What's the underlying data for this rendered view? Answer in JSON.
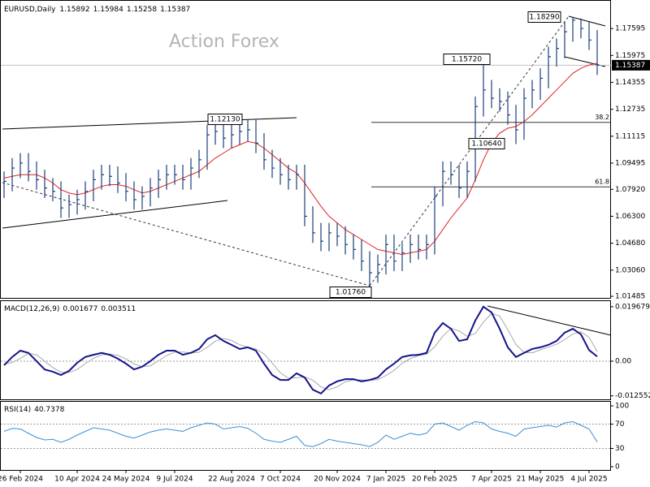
{
  "chart_data": [
    {
      "type": "ohlc",
      "symbol": "EURUSD,Daily",
      "last_bar": {
        "open": 1.15892,
        "high": 1.15984,
        "low": 1.15258,
        "close": 1.15387
      },
      "watermark": "Action Forex",
      "color": "#1c3f7a",
      "categories": [
        null,
        null,
        "26 Feb 2024",
        null,
        null,
        null,
        null,
        null,
        null,
        "10 Apr 2024",
        null,
        null,
        null,
        null,
        null,
        "24 May 2024",
        null,
        null,
        null,
        null,
        null,
        "9 Jul 2024",
        null,
        null,
        null,
        null,
        null,
        null,
        "22 Aug 2024",
        null,
        null,
        null,
        null,
        null,
        "7 Oct 2024",
        null,
        null,
        null,
        null,
        null,
        null,
        "20 Nov 2024",
        null,
        null,
        null,
        null,
        null,
        "7 Jan 2025",
        null,
        null,
        null,
        null,
        null,
        "20 Feb 2025",
        null,
        null,
        null,
        null,
        null,
        null,
        "7 Apr 2025",
        null,
        null,
        null,
        null,
        null,
        "21 May 2025",
        null,
        null,
        null,
        null,
        null,
        "4 Jul 2025",
        null
      ],
      "high": [
        1.09,
        1.098,
        1.101,
        1.101,
        1.096,
        1.091,
        1.086,
        1.084,
        1.076,
        1.079,
        1.084,
        1.091,
        1.094,
        1.094,
        1.093,
        1.089,
        1.084,
        1.081,
        1.086,
        1.091,
        1.094,
        1.094,
        1.094,
        1.098,
        1.103,
        1.118,
        1.12,
        1.12,
        1.1213,
        1.12,
        1.121,
        1.121,
        1.113,
        1.103,
        1.098,
        1.094,
        1.094,
        1.094,
        1.069,
        1.059,
        1.059,
        1.059,
        1.057,
        1.052,
        1.049,
        1.042,
        1.04,
        1.052,
        1.052,
        1.047,
        1.052,
        1.052,
        1.052,
        1.081,
        1.096,
        1.096,
        1.094,
        1.096,
        1.135,
        1.1572,
        1.145,
        1.14,
        1.138,
        1.13,
        1.14,
        1.145,
        1.152,
        1.165,
        1.17,
        1.18,
        1.1829,
        1.182,
        1.18,
        1.175
      ],
      "low": [
        1.074,
        1.078,
        1.086,
        1.084,
        1.079,
        1.074,
        1.072,
        1.062,
        1.062,
        1.064,
        1.067,
        1.072,
        1.079,
        1.081,
        1.077,
        1.072,
        1.067,
        1.067,
        1.069,
        1.074,
        1.079,
        1.082,
        1.079,
        1.079,
        1.086,
        1.091,
        1.106,
        1.104,
        1.104,
        1.106,
        1.108,
        1.101,
        1.091,
        1.086,
        1.082,
        1.079,
        1.079,
        1.057,
        1.047,
        1.042,
        1.042,
        1.045,
        1.04,
        1.037,
        1.03,
        1.0176,
        1.023,
        1.028,
        1.03,
        1.03,
        1.035,
        1.037,
        1.037,
        1.04,
        1.069,
        1.082,
        1.074,
        1.074,
        1.084,
        1.123,
        1.128,
        1.126,
        1.118,
        1.1064,
        1.109,
        1.128,
        1.133,
        1.14,
        1.153,
        1.158,
        1.168,
        1.17,
        1.163,
        1.148
      ],
      "close": [
        1.084,
        1.092,
        1.095,
        1.09,
        1.085,
        1.08,
        1.078,
        1.068,
        1.07,
        1.073,
        1.078,
        1.085,
        1.088,
        1.087,
        1.083,
        1.078,
        1.073,
        1.075,
        1.08,
        1.085,
        1.088,
        1.088,
        1.085,
        1.092,
        1.097,
        1.112,
        1.114,
        1.11,
        1.112,
        1.114,
        1.115,
        1.107,
        1.097,
        1.092,
        1.088,
        1.085,
        1.088,
        1.063,
        1.053,
        1.048,
        1.053,
        1.051,
        1.046,
        1.043,
        1.036,
        1.029,
        1.034,
        1.046,
        1.036,
        1.041,
        1.046,
        1.043,
        1.046,
        1.075,
        1.09,
        1.088,
        1.08,
        1.09,
        1.129,
        1.139,
        1.134,
        1.132,
        1.124,
        1.115,
        1.134,
        1.139,
        1.146,
        1.159,
        1.164,
        1.174,
        1.181,
        1.176,
        1.169,
        1.15387
      ],
      "ma": {
        "color": "#e02020",
        "values": [
          1.086,
          1.087,
          1.088,
          1.088,
          1.088,
          1.086,
          1.083,
          1.079,
          1.077,
          1.076,
          1.077,
          1.079,
          1.081,
          1.082,
          1.082,
          1.081,
          1.079,
          1.077,
          1.078,
          1.08,
          1.082,
          1.084,
          1.086,
          1.088,
          1.09,
          1.094,
          1.098,
          1.101,
          1.104,
          1.106,
          1.108,
          1.107,
          1.104,
          1.1,
          1.096,
          1.092,
          1.089,
          1.083,
          1.076,
          1.069,
          1.063,
          1.059,
          1.055,
          1.052,
          1.049,
          1.046,
          1.043,
          1.042,
          1.041,
          1.04,
          1.041,
          1.042,
          1.043,
          1.048,
          1.055,
          1.062,
          1.068,
          1.074,
          1.085,
          1.097,
          1.107,
          1.113,
          1.116,
          1.117,
          1.12,
          1.124,
          1.129,
          1.134,
          1.139,
          1.144,
          1.149,
          1.152,
          1.154,
          1.155
        ]
      },
      "levels": [
        {
          "label": "38.2",
          "value": 1.1195
        },
        {
          "label": "61.8",
          "value": 1.0807
        }
      ],
      "price_labels": [
        "1.18290",
        "1.15720",
        "1.12130",
        "1.10640",
        "1.01760"
      ],
      "ylim": [
        1.0139,
        1.1931
      ],
      "yticks": [
        1.17595,
        1.15975,
        1.14355,
        1.12735,
        1.11115,
        1.09495,
        {
          "value": 1.0792,
          "label": "1.07920"
        },
        {
          "value": 1.063,
          "label": "1.06300"
        },
        {
          "value": 1.0468,
          "label": "1.04680"
        },
        {
          "value": 1.0306,
          "label": "1.03060"
        },
        1.01485
      ]
    },
    {
      "type": "line",
      "label": "MACD(12,26,9)",
      "series": [
        {
          "color": "#14148c",
          "values": [
            -0.0015,
            0.0015,
            0.0038,
            0.003,
            0,
            -0.003,
            -0.0038,
            -0.005,
            -0.0035,
            -0.0006,
            0.0015,
            0.0023,
            0.003,
            0.0023,
            0.0009,
            -0.0009,
            -0.003,
            -0.002,
            0,
            0.0023,
            0.0038,
            0.0038,
            0.0023,
            0.003,
            0.0044,
            0.0079,
            0.0094,
            0.0073,
            0.0059,
            0.0044,
            0.005,
            0.0038,
            -0.0009,
            -0.005,
            -0.0068,
            -0.0068,
            -0.0044,
            -0.0059,
            -0.0103,
            -0.0117,
            -0.0088,
            -0.0073,
            -0.0065,
            -0.0065,
            -0.0073,
            -0.0068,
            -0.0059,
            -0.003,
            -0.0009,
            0.0015,
            0.0021,
            0.0023,
            0.003,
            0.0103,
            0.0138,
            0.0117,
            0.0073,
            0.0079,
            0.0147,
            0.0197,
            0.0176,
            0.0117,
            0.005,
            0.0015,
            0.003,
            0.0044,
            0.005,
            0.0059,
            0.0073,
            0.0103,
            0.0117,
            0.0097,
            0.004,
            0.001677
          ]
        },
        {
          "color": "#a8a8a8",
          "values": [
            -0.001,
            -0.0005,
            0.001,
            0.0028,
            0.0023,
            0,
            -0.0023,
            -0.004,
            -0.0041,
            -0.003,
            -0.0009,
            0.001,
            0.0023,
            0.0025,
            0.0021,
            0.0008,
            -0.001,
            -0.002,
            -0.0017,
            0.0001,
            0.002,
            0.0033,
            0.0033,
            0.003,
            0.0032,
            0.005,
            0.0072,
            0.0082,
            0.0075,
            0.0059,
            0.0051,
            0.0044,
            0.0026,
            -0.0007,
            -0.0042,
            -0.0062,
            -0.006,
            -0.0057,
            -0.0069,
            -0.0093,
            -0.0103,
            -0.0093,
            -0.0075,
            -0.0068,
            -0.0068,
            -0.0069,
            -0.0067,
            -0.0052,
            -0.0033,
            -0.0008,
            0.0009,
            0.002,
            0.0025,
            0.0052,
            0.009,
            0.0119,
            0.0109,
            0.009,
            0.01,
            0.0141,
            0.0173,
            0.0163,
            0.0114,
            0.006,
            0.0032,
            0.003,
            0.0041,
            0.0051,
            0.0061,
            0.0078,
            0.0098,
            0.0106,
            0.0086,
            0.003511
          ]
        }
      ],
      "ylim": [
        -0.0141,
        0.0217
      ],
      "yticks": [
        0.019679,
        {
          "value": 0,
          "label": "0.00"
        },
        -0.012552
      ],
      "grid_levels": [
        0
      ]
    },
    {
      "type": "line",
      "label": "RSI(14)",
      "series": [
        {
          "color": "#3d8fd6",
          "values": [
            58,
            63,
            62,
            55,
            48,
            44,
            45,
            40,
            45,
            52,
            58,
            64,
            62,
            60,
            55,
            50,
            47,
            52,
            57,
            60,
            62,
            60,
            58,
            64,
            68,
            72,
            70,
            62,
            64,
            66,
            63,
            55,
            45,
            42,
            40,
            45,
            50,
            35,
            33,
            38,
            45,
            42,
            40,
            38,
            36,
            33,
            40,
            52,
            45,
            50,
            55,
            52,
            55,
            70,
            72,
            66,
            60,
            68,
            74,
            72,
            62,
            58,
            55,
            50,
            62,
            64,
            66,
            68,
            65,
            72,
            74,
            68,
            62,
            40.7378
          ]
        }
      ],
      "ylim": [
        -6.7,
        106.7
      ],
      "yticks": [
        100,
        70,
        30,
        0
      ],
      "grid_levels": [
        70,
        30
      ]
    }
  ]
}
